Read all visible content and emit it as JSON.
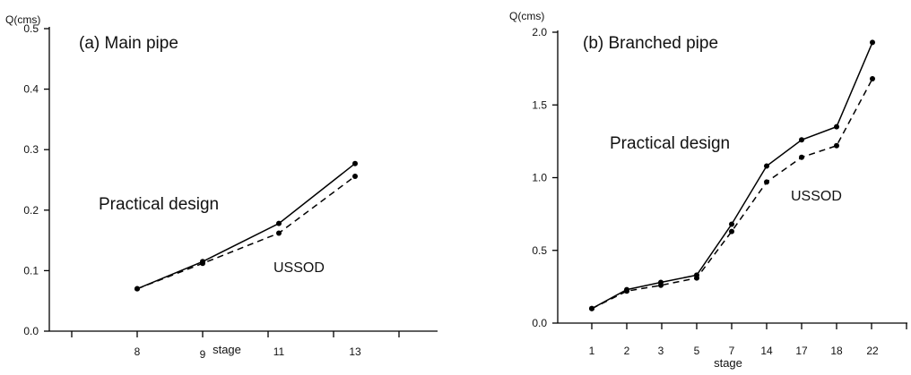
{
  "chart_data": [
    {
      "type": "line",
      "title": "(a) Main pipe",
      "xlabel": "stage",
      "ylabel": "Q(cms)",
      "categories": [
        "8",
        "9",
        "11",
        "13"
      ],
      "yticks": [
        "0.0",
        "0.1",
        "0.2",
        "0.3",
        "0.4",
        "0.5"
      ],
      "ylim": [
        0,
        0.5
      ],
      "grid": false,
      "series": [
        {
          "name": "Practical design",
          "style": "solid",
          "values": [
            0.07,
            0.115,
            0.178,
            0.277
          ]
        },
        {
          "name": "USSOD",
          "style": "dashed",
          "values": [
            0.07,
            0.112,
            0.162,
            0.256
          ]
        }
      ]
    },
    {
      "type": "line",
      "title": "(b) Branched pipe",
      "xlabel": "stage",
      "ylabel": "Q(cms)",
      "categories": [
        "1",
        "2",
        "3",
        "5",
        "7",
        "14",
        "17",
        "18",
        "22"
      ],
      "yticks": [
        "0.0",
        "0.5",
        "1.0",
        "1.5",
        "2.0"
      ],
      "ylim": [
        0,
        2.0
      ],
      "grid": false,
      "series": [
        {
          "name": "Practical design",
          "style": "solid",
          "values": [
            0.1,
            0.23,
            0.28,
            0.33,
            0.68,
            1.08,
            1.26,
            1.35,
            1.93
          ]
        },
        {
          "name": "USSOD",
          "style": "dashed",
          "values": [
            0.1,
            0.22,
            0.26,
            0.31,
            0.63,
            0.97,
            1.14,
            1.22,
            1.68
          ]
        }
      ]
    }
  ]
}
